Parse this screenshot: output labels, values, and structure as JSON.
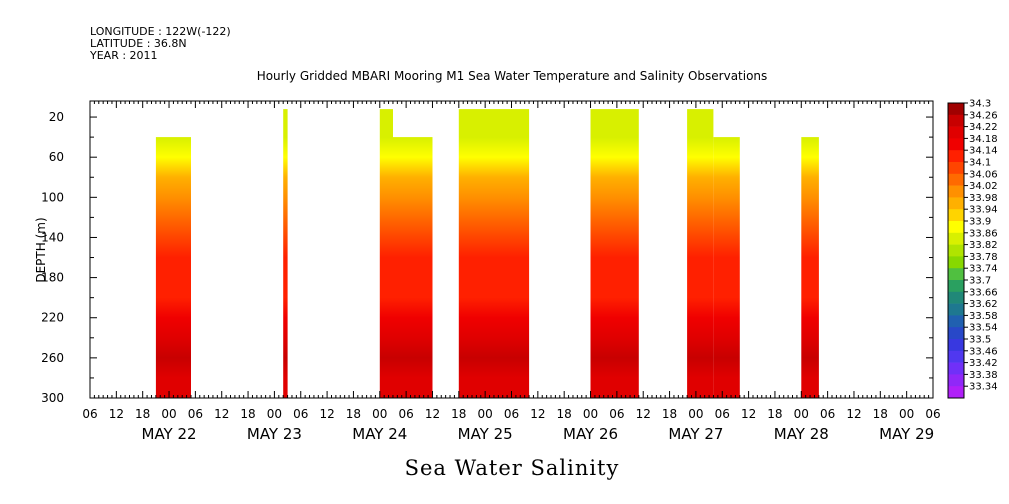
{
  "header": {
    "longitude": "LONGITUDE : 122W(-122)",
    "latitude": "LATITUDE : 36.8N",
    "year": "YEAR : 2011"
  },
  "title": "Hourly Gridded MBARI Mooring M1 Sea Water Temperature and Salinity Observations",
  "variable_label": "Sea Water Salinity",
  "chart_data": {
    "type": "heatmap",
    "title": "Hourly Gridded MBARI Mooring M1 Sea Water Temperature and Salinity Observations",
    "ylabel": "DEPTH (m)",
    "xlabel": "",
    "x_unit": "hours since 2011-05-21 06:00",
    "xlim": [
      0,
      192
    ],
    "ylim": [
      300,
      4
    ],
    "y_inverted": true,
    "y_ticks": [
      20,
      60,
      100,
      140,
      180,
      220,
      260,
      300
    ],
    "x_hour_labels": [
      "06",
      "12",
      "18",
      "00",
      "06",
      "12",
      "18",
      "00",
      "06",
      "12",
      "18",
      "00",
      "06",
      "12",
      "18",
      "00",
      "06",
      "12",
      "18",
      "00",
      "06",
      "12",
      "18",
      "00",
      "06",
      "12",
      "18",
      "00",
      "06",
      "12",
      "18",
      "00",
      "06"
    ],
    "day_labels": [
      {
        "label": "MAY 22",
        "hour": 18
      },
      {
        "label": "MAY 23",
        "hour": 42
      },
      {
        "label": "MAY 24",
        "hour": 66
      },
      {
        "label": "MAY 25",
        "hour": 90
      },
      {
        "label": "MAY 26",
        "hour": 114
      },
      {
        "label": "MAY 27",
        "hour": 138
      },
      {
        "label": "MAY 28",
        "hour": 162
      },
      {
        "label": "MAY 29",
        "hour": 186
      }
    ],
    "colorbar": {
      "levels": [
        "34.3",
        "34.26",
        "34.22",
        "34.18",
        "34.14",
        "34.1",
        "34.06",
        "34.02",
        "33.98",
        "33.94",
        "33.9",
        "33.86",
        "33.82",
        "33.78",
        "33.74",
        "33.7",
        "33.66",
        "33.62",
        "33.58",
        "33.54",
        "33.5",
        "33.46",
        "33.42",
        "33.38",
        "33.34"
      ],
      "colors": [
        "#a00000",
        "#c80000",
        "#e00000",
        "#f00000",
        "#ff2000",
        "#ff4500",
        "#ff6a00",
        "#ff9000",
        "#ffb000",
        "#ffd400",
        "#ffff00",
        "#d8f000",
        "#b0e400",
        "#88d800",
        "#50c040",
        "#2aa060",
        "#208878",
        "#1e7890",
        "#2060b0",
        "#2848c8",
        "#3838e0",
        "#5038f0",
        "#7030f8",
        "#9028f8",
        "#b020f8"
      ]
    },
    "data_blocks": [
      {
        "start": 15,
        "end": 23,
        "top_depth": 40,
        "bottom_depth": 300
      },
      {
        "start": 44,
        "end": 45,
        "top_depth": 20,
        "bottom_depth": 300
      },
      {
        "start": 66,
        "end": 69,
        "top_depth": 20,
        "bottom_depth": 300
      },
      {
        "start": 69,
        "end": 78,
        "top_depth": 40,
        "bottom_depth": 300
      },
      {
        "start": 84,
        "end": 100,
        "top_depth": 20,
        "bottom_depth": 300
      },
      {
        "start": 114,
        "end": 125,
        "top_depth": 20,
        "bottom_depth": 300
      },
      {
        "start": 136,
        "end": 142,
        "top_depth": 20,
        "bottom_depth": 300
      },
      {
        "start": 142,
        "end": 148,
        "top_depth": 40,
        "bottom_depth": 300
      },
      {
        "start": 162,
        "end": 166,
        "top_depth": 40,
        "bottom_depth": 300
      }
    ],
    "salinity_profile": [
      {
        "depth": 20,
        "value": 33.84
      },
      {
        "depth": 40,
        "value": 33.86
      },
      {
        "depth": 60,
        "value": 33.9
      },
      {
        "depth": 80,
        "value": 33.98
      },
      {
        "depth": 100,
        "value": 34.04
      },
      {
        "depth": 120,
        "value": 34.08
      },
      {
        "depth": 140,
        "value": 34.11
      },
      {
        "depth": 160,
        "value": 34.13
      },
      {
        "depth": 180,
        "value": 34.13
      },
      {
        "depth": 200,
        "value": 34.14
      },
      {
        "depth": 220,
        "value": 34.18
      },
      {
        "depth": 240,
        "value": 34.22
      },
      {
        "depth": 260,
        "value": 34.24
      },
      {
        "depth": 280,
        "value": 34.22
      },
      {
        "depth": 300,
        "value": 34.2
      }
    ]
  }
}
